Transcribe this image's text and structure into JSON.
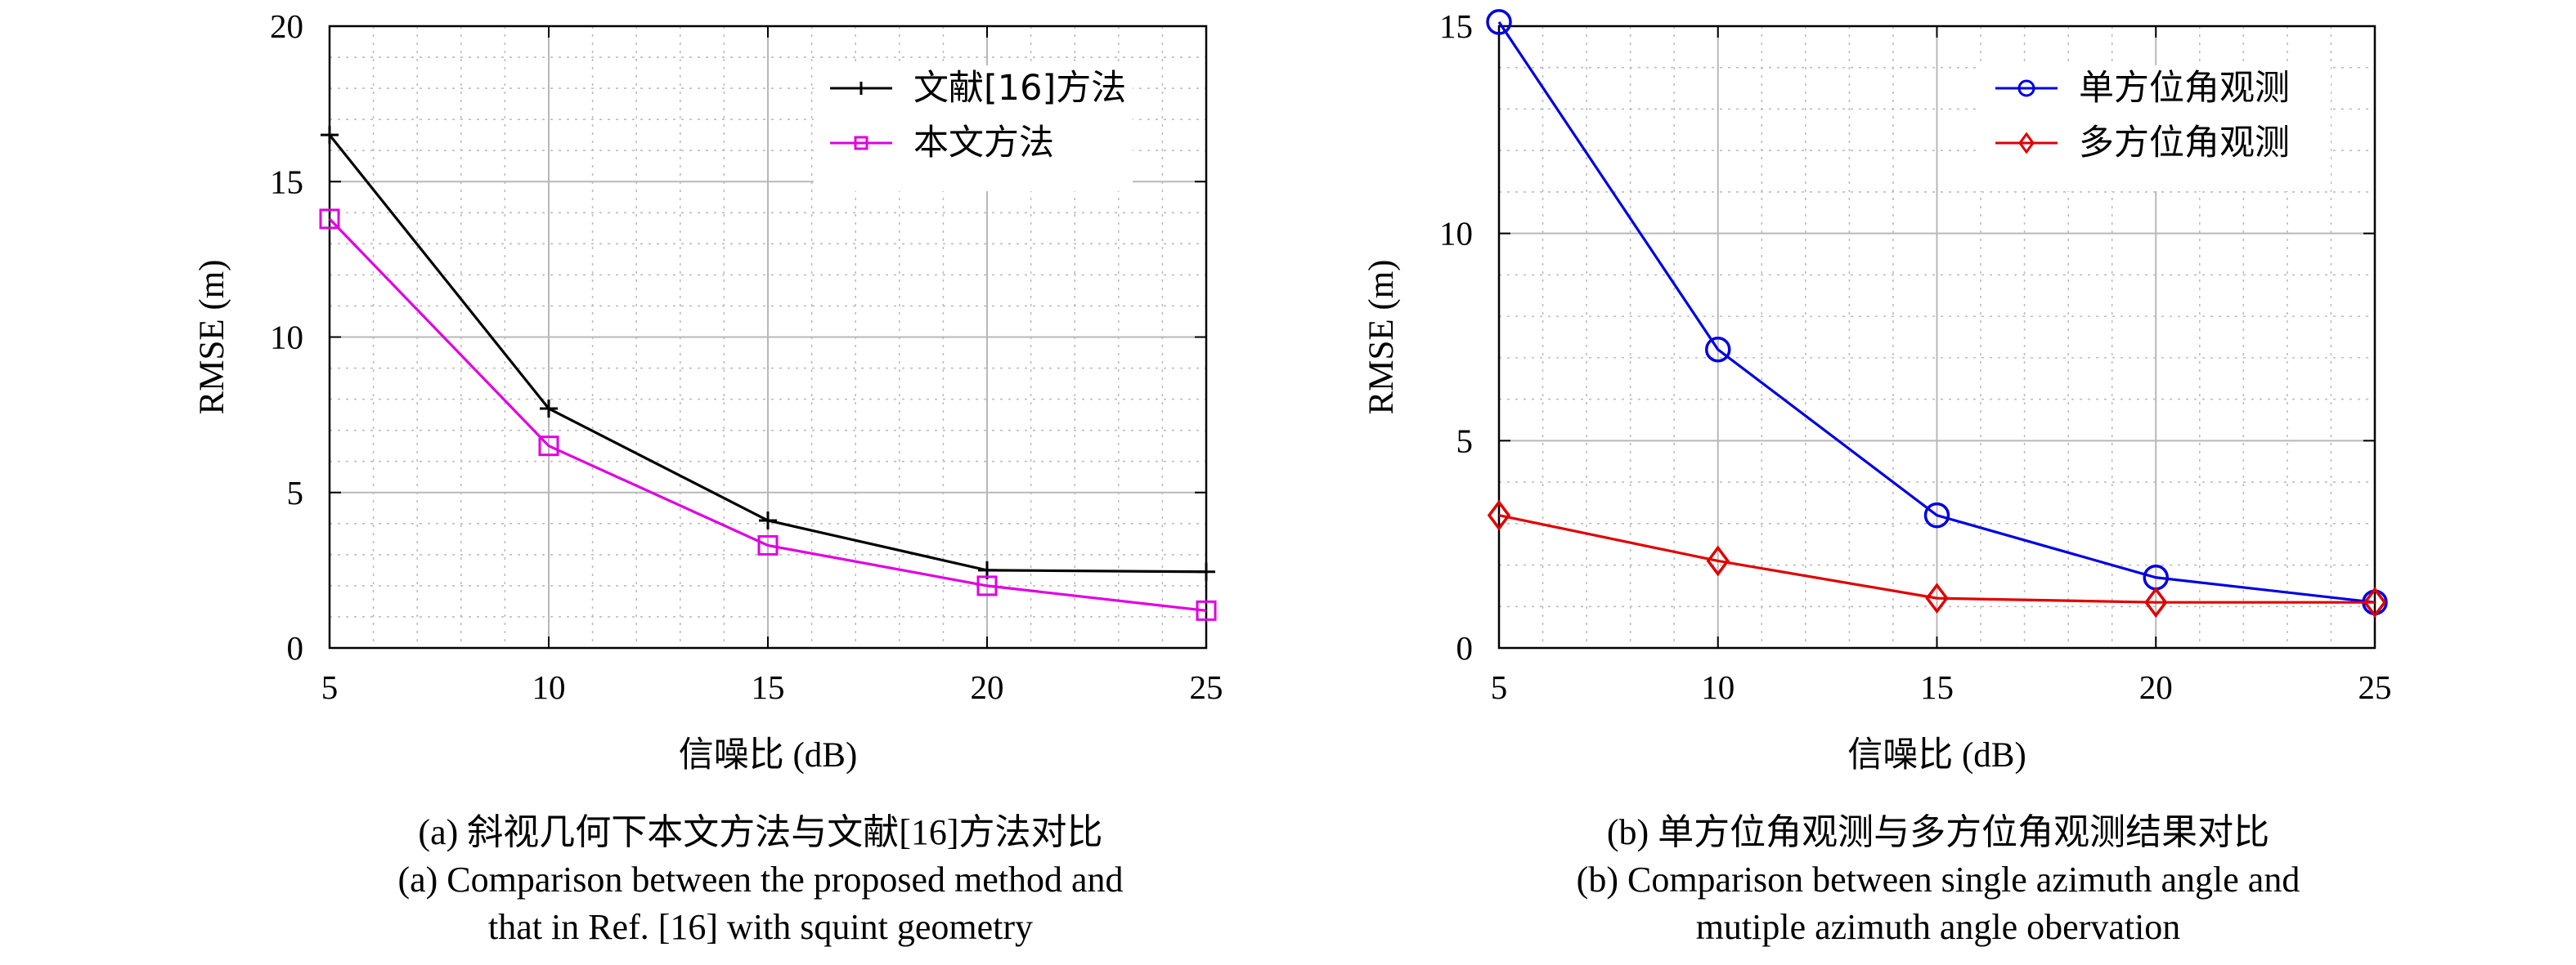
{
  "chart_data": [
    {
      "type": "line",
      "xlabel": "信噪比 (dB)",
      "ylabel": "RMSE (m)",
      "xlim": [
        5,
        25
      ],
      "ylim": [
        0,
        20
      ],
      "x": [
        5,
        10,
        15,
        20,
        25
      ],
      "xticks": [
        "5",
        "10",
        "15",
        "20",
        "25"
      ],
      "yticks": [
        "0",
        "5",
        "10",
        "15",
        "20"
      ],
      "yticks_values": [
        0,
        5,
        10,
        15,
        20
      ],
      "grid": true,
      "legend_position": "top-right",
      "series": [
        {
          "name": "文献[16]方法",
          "values": [
            16.5,
            7.7,
            4.1,
            2.5,
            2.45
          ],
          "color": "#000000",
          "marker": "plus"
        },
        {
          "name": "本文方法",
          "values": [
            13.8,
            6.5,
            3.3,
            2.0,
            1.2
          ],
          "color": "#e000e0",
          "marker": "square"
        }
      ],
      "caption_cn": "(a) 斜视几何下本文方法与文献[16]方法对比",
      "caption_en_line1": "(a) Comparison between the proposed method and",
      "caption_en_line2": "that in Ref. [16] with squint geometry"
    },
    {
      "type": "line",
      "xlabel": "信噪比 (dB)",
      "ylabel": "RMSE (m)",
      "xlim": [
        5,
        25
      ],
      "ylim": [
        0,
        15
      ],
      "x": [
        5,
        10,
        15,
        20,
        25
      ],
      "xticks": [
        "5",
        "10",
        "15",
        "20",
        "25"
      ],
      "yticks": [
        "0",
        "5",
        "10",
        "15"
      ],
      "yticks_values": [
        0,
        5,
        10,
        15
      ],
      "grid": true,
      "legend_position": "top-right",
      "series": [
        {
          "name": "单方位角观测",
          "values": [
            15.1,
            7.2,
            3.2,
            1.7,
            1.1
          ],
          "color": "#0000e0",
          "marker": "circle"
        },
        {
          "name": "多方位角观测",
          "values": [
            3.2,
            2.1,
            1.2,
            1.1,
            1.1
          ],
          "color": "#e00000",
          "marker": "diamond"
        }
      ],
      "caption_cn": "(b) 单方位角观测与多方位角观测结果对比",
      "caption_en_line1": "(b) Comparison between single azimuth angle and",
      "caption_en_line2": "mutiple azimuth angle obervation"
    }
  ]
}
